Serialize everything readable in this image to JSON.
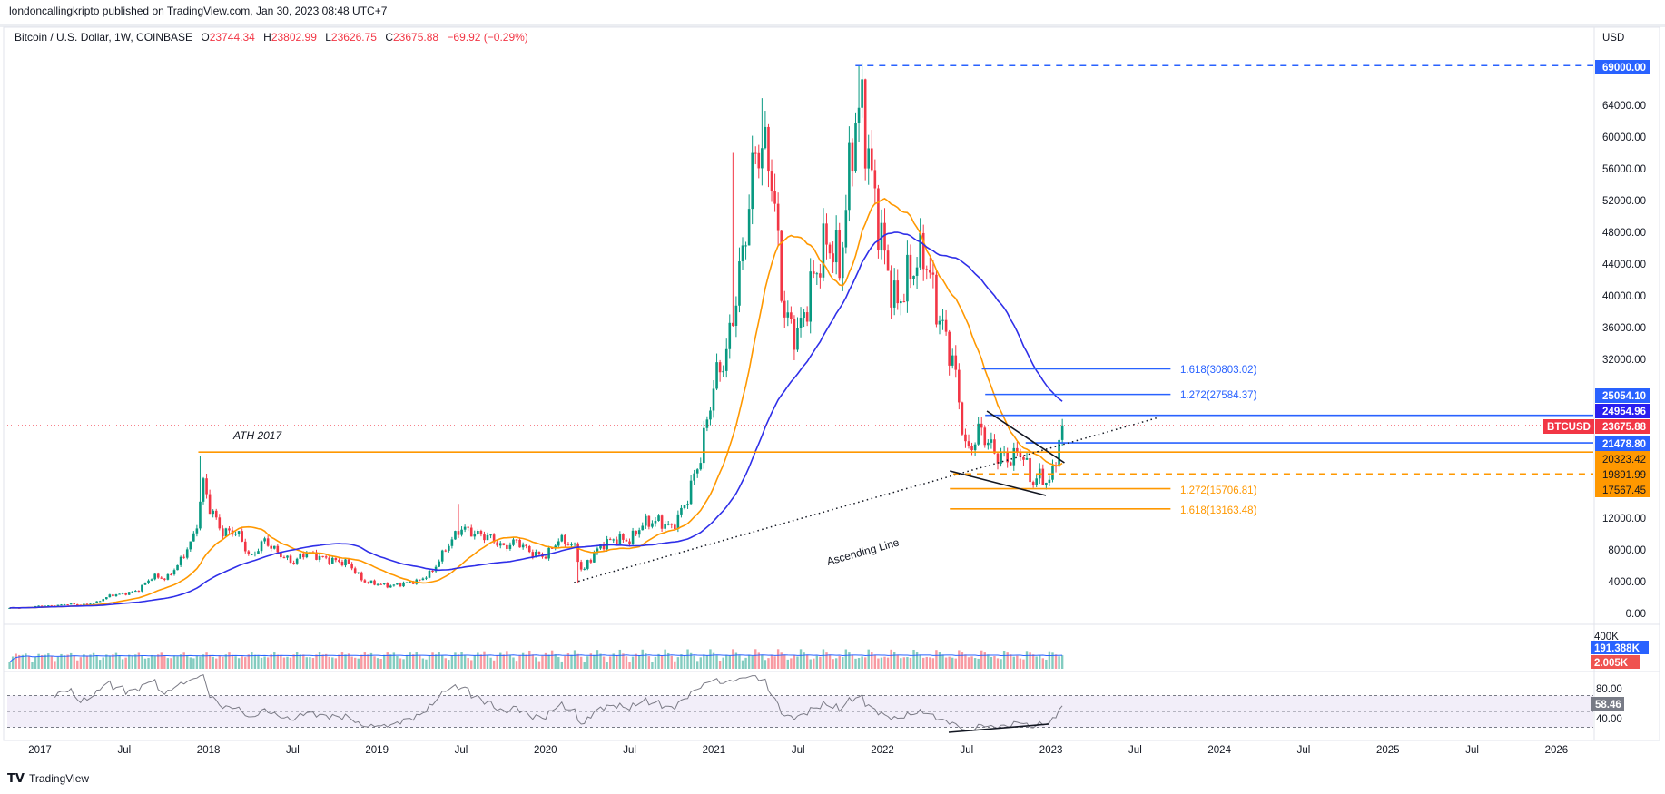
{
  "header": {
    "published": "londoncallingkripto published on TradingView.com, Jan 30, 2023 08:48 UTC+7",
    "symbol": "Bitcoin / U.S. Dollar, 1W, COINBASE",
    "o_label": "O",
    "o": "23744.34",
    "h_label": "H",
    "h": "23802.99",
    "l_label": "L",
    "l": "23626.75",
    "c_label": "C",
    "c": "23675.88",
    "change": "−69.92 (−0.29%)"
  },
  "axis": {
    "currency": "USD",
    "y_ticks": [
      "0.00",
      "4000.00",
      "8000.00",
      "12000.00",
      "32000.00",
      "36000.00",
      "40000.00",
      "44000.00",
      "48000.00",
      "52000.00",
      "56000.00",
      "60000.00",
      "64000.00"
    ],
    "y_tick_values": [
      0,
      4000,
      8000,
      12000,
      32000,
      36000,
      40000,
      44000,
      48000,
      52000,
      56000,
      60000,
      64000
    ],
    "x_ticks": [
      "2017",
      "Jul",
      "2018",
      "Jul",
      "2019",
      "Jul",
      "2020",
      "Jul",
      "2021",
      "Jul",
      "2022",
      "Jul",
      "2023",
      "Jul",
      "2024",
      "Jul",
      "2025",
      "Jul",
      "2026"
    ],
    "x_tick_values": [
      2017,
      2017.5,
      2018,
      2018.5,
      2019,
      2019.5,
      2020,
      2020.5,
      2021,
      2021.5,
      2022,
      2022.5,
      2023,
      2023.5,
      2024,
      2024.5,
      2025,
      2025.5,
      2026
    ]
  },
  "price_labels": {
    "ath": "69000.00",
    "l1": "25054.10",
    "l2": "24954.96",
    "ticker": "BTCUSD",
    "last": "23675.88",
    "l3": "21478.80",
    "l4": "20323.42",
    "l5": "19891.99",
    "l6": "17567.45"
  },
  "annotations": {
    "ath2017": "ATH 2017",
    "ascending": "Ascending Line",
    "fib_b1": "1.618(30803.02)",
    "fib_b2": "1.272(27584.37)",
    "fib_o1": "1.272(15706.81)",
    "fib_o2": "1.618(13163.48)"
  },
  "volume": {
    "max_label": "400K",
    "ma_value": "191.388K",
    "value": "2.005K"
  },
  "rsi": {
    "upper_label": "80.00",
    "lower_label": "40.00",
    "value": "58.46"
  },
  "footer": {
    "brand": "TradingView"
  },
  "colors": {
    "up": "#089981",
    "down": "#f23645",
    "ma_fast": "#ff9800",
    "ma_slow": "#2f2fe8",
    "fib_blue": "#2962ff",
    "fib_orange": "#ff9800",
    "rsi": "#7e57c2"
  },
  "chart_data": {
    "type": "candlestick",
    "title": "Bitcoin / U.S. Dollar, 1W, COINBASE",
    "ylabel": "USD",
    "ylim": [
      0,
      69000
    ],
    "xlim": [
      2016.8,
      2026.3
    ],
    "monthly_closes": [
      [
        2016.83,
        700
      ],
      [
        2016.92,
        740
      ],
      [
        2017.0,
        960
      ],
      [
        2017.08,
        970
      ],
      [
        2017.17,
        1190
      ],
      [
        2017.25,
        1080
      ],
      [
        2017.33,
        1350
      ],
      [
        2017.42,
        2300
      ],
      [
        2017.5,
        2480
      ],
      [
        2017.58,
        2870
      ],
      [
        2017.67,
        4700
      ],
      [
        2017.75,
        4340
      ],
      [
        2017.83,
        6450
      ],
      [
        2017.92,
        9950
      ],
      [
        2017.97,
        16500
      ],
      [
        2018.0,
        13800
      ],
      [
        2018.08,
        10200
      ],
      [
        2018.17,
        10300
      ],
      [
        2018.25,
        6900
      ],
      [
        2018.33,
        9240
      ],
      [
        2018.42,
        7500
      ],
      [
        2018.5,
        6400
      ],
      [
        2018.58,
        7730
      ],
      [
        2018.67,
        7030
      ],
      [
        2018.75,
        6630
      ],
      [
        2018.83,
        6320
      ],
      [
        2018.92,
        4020
      ],
      [
        2019.0,
        3740
      ],
      [
        2019.08,
        3460
      ],
      [
        2019.17,
        3830
      ],
      [
        2019.25,
        4100
      ],
      [
        2019.33,
        5320
      ],
      [
        2019.42,
        8570
      ],
      [
        2019.5,
        10800
      ],
      [
        2019.58,
        10080
      ],
      [
        2019.67,
        9600
      ],
      [
        2019.75,
        8290
      ],
      [
        2019.83,
        9150
      ],
      [
        2019.92,
        7550
      ],
      [
        2020.0,
        7200
      ],
      [
        2020.08,
        9350
      ],
      [
        2020.17,
        8540
      ],
      [
        2020.22,
        5000
      ],
      [
        2020.25,
        6410
      ],
      [
        2020.33,
        8620
      ],
      [
        2020.42,
        9450
      ],
      [
        2020.5,
        9140
      ],
      [
        2020.58,
        11350
      ],
      [
        2020.67,
        11650
      ],
      [
        2020.75,
        10780
      ],
      [
        2020.83,
        13800
      ],
      [
        2020.92,
        19700
      ],
      [
        2021.0,
        29000
      ],
      [
        2021.08,
        33100
      ],
      [
        2021.17,
        45200
      ],
      [
        2021.25,
        58800
      ],
      [
        2021.33,
        57700
      ],
      [
        2021.42,
        37300
      ],
      [
        2021.5,
        35000
      ],
      [
        2021.58,
        41500
      ],
      [
        2021.67,
        47100
      ],
      [
        2021.75,
        43800
      ],
      [
        2021.83,
        61300
      ],
      [
        2021.88,
        64000
      ],
      [
        2021.92,
        57000
      ],
      [
        2022.0,
        46300
      ],
      [
        2022.08,
        38500
      ],
      [
        2022.17,
        43200
      ],
      [
        2022.25,
        45500
      ],
      [
        2022.33,
        37700
      ],
      [
        2022.42,
        31800
      ],
      [
        2022.5,
        19900
      ],
      [
        2022.58,
        23300
      ],
      [
        2022.67,
        20050
      ],
      [
        2022.75,
        19400
      ],
      [
        2022.83,
        20500
      ],
      [
        2022.88,
        16500
      ],
      [
        2022.92,
        17200
      ],
      [
        2023.0,
        16550
      ],
      [
        2023.04,
        21000
      ],
      [
        2023.07,
        23675.88
      ]
    ],
    "extremes": [
      [
        2017.96,
        19800
      ],
      [
        2021.12,
        58000
      ],
      [
        2021.29,
        64900
      ],
      [
        2021.86,
        69000
      ],
      [
        2019.48,
        13800
      ],
      [
        2020.2,
        3850
      ]
    ],
    "indicators": [
      "MA fast (orange)",
      "MA slow (blue)",
      "Volume + MA",
      "RSI 14"
    ],
    "drawings": {
      "hlines": [
        {
          "price": 69000,
          "from": 2021.84,
          "style": "dashed",
          "color": "#2962ff"
        },
        {
          "price": 24954.96,
          "from": 2022.61,
          "style": "solid",
          "color": "#2962ff"
        },
        {
          "price": 21478.8,
          "from": 2022.85,
          "style": "solid",
          "color": "#2962ff"
        },
        {
          "price": 20323.42,
          "from": 2017.94,
          "style": "solid",
          "color": "#ff9800"
        },
        {
          "price": 17567.45,
          "from": 2022.42,
          "style": "dashed",
          "color": "#ff9800"
        }
      ],
      "fib_levels": [
        {
          "price": 30803.02,
          "from": 2022.59,
          "to": 2023.71,
          "color": "#2962ff"
        },
        {
          "price": 27584.37,
          "from": 2022.61,
          "to": 2023.71,
          "color": "#2962ff"
        },
        {
          "price": 15706.81,
          "from": 2022.4,
          "to": 2023.71,
          "color": "#ff9800"
        },
        {
          "price": 13163.48,
          "from": 2022.4,
          "to": 2023.71,
          "color": "#ff9800"
        }
      ],
      "ascending_line": [
        [
          2020.17,
          3886
        ],
        [
          2023.64,
          24686
        ]
      ],
      "wedge_upper": [
        [
          2022.62,
          25486
        ],
        [
          2023.08,
          18971
        ]
      ],
      "wedge_lower": [
        [
          2022.4,
          17943
        ],
        [
          2022.97,
          14857
        ]
      ],
      "last_price": 23675.88
    }
  }
}
